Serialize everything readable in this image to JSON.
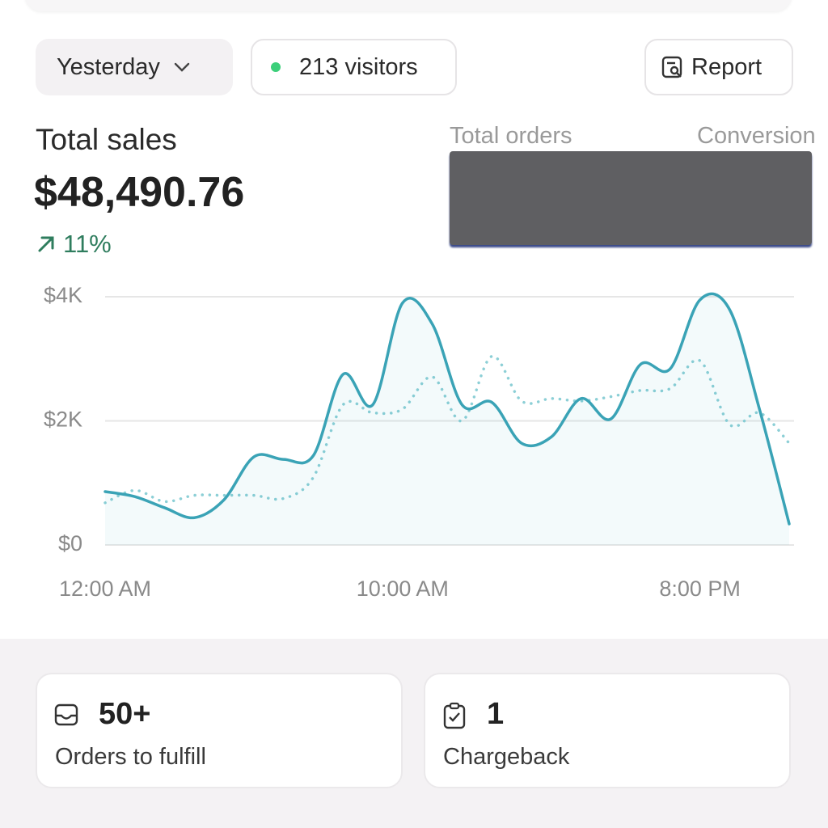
{
  "filters": {
    "period": "Yesterday",
    "visitors": "213 visitors",
    "report": "Report"
  },
  "summary": {
    "label": "Total sales",
    "amount": "$48,490.76",
    "change": "11%",
    "orders_label": "Total orders",
    "conversion_label": "Conversion"
  },
  "chart_data": {
    "type": "line",
    "x": [
      0,
      1,
      2,
      3,
      4,
      5,
      6,
      7,
      8,
      9,
      10,
      11,
      12,
      13,
      14,
      15,
      16,
      17,
      18,
      19,
      20,
      21,
      22,
      23
    ],
    "series": [
      {
        "color": "#3aa3b6",
        "style": "solid",
        "values": [
          860,
          780,
          600,
          440,
          730,
          1420,
          1380,
          1440,
          2750,
          2260,
          3900,
          3560,
          2260,
          2300,
          1640,
          1740,
          2360,
          2030,
          2910,
          2840,
          3950,
          3790,
          2190,
          340
        ]
      },
      {
        "color": "#8ccfd6",
        "style": "dotted",
        "values": [
          680,
          880,
          700,
          800,
          800,
          800,
          750,
          1090,
          2260,
          2130,
          2190,
          2710,
          2000,
          3040,
          2320,
          2360,
          2320,
          2390,
          2490,
          2520,
          2970,
          1940,
          2130,
          1640
        ]
      }
    ],
    "xlim": [
      0,
      23
    ],
    "xticks": [
      {
        "value": 0,
        "label": "12:00 AM"
      },
      {
        "value": 10,
        "label": "10:00 AM"
      },
      {
        "value": 20,
        "label": "8:00 PM"
      }
    ],
    "ylim": [
      0,
      4000
    ],
    "yticks": [
      {
        "value": 0,
        "label": "$0"
      },
      {
        "value": 2000,
        "label": "$2K"
      },
      {
        "value": 4000,
        "label": "$4K"
      }
    ],
    "grid": true
  },
  "cards": [
    {
      "value": "50+",
      "label": "Orders to fulfill"
    },
    {
      "value": "1",
      "label": "Chargeback"
    }
  ]
}
